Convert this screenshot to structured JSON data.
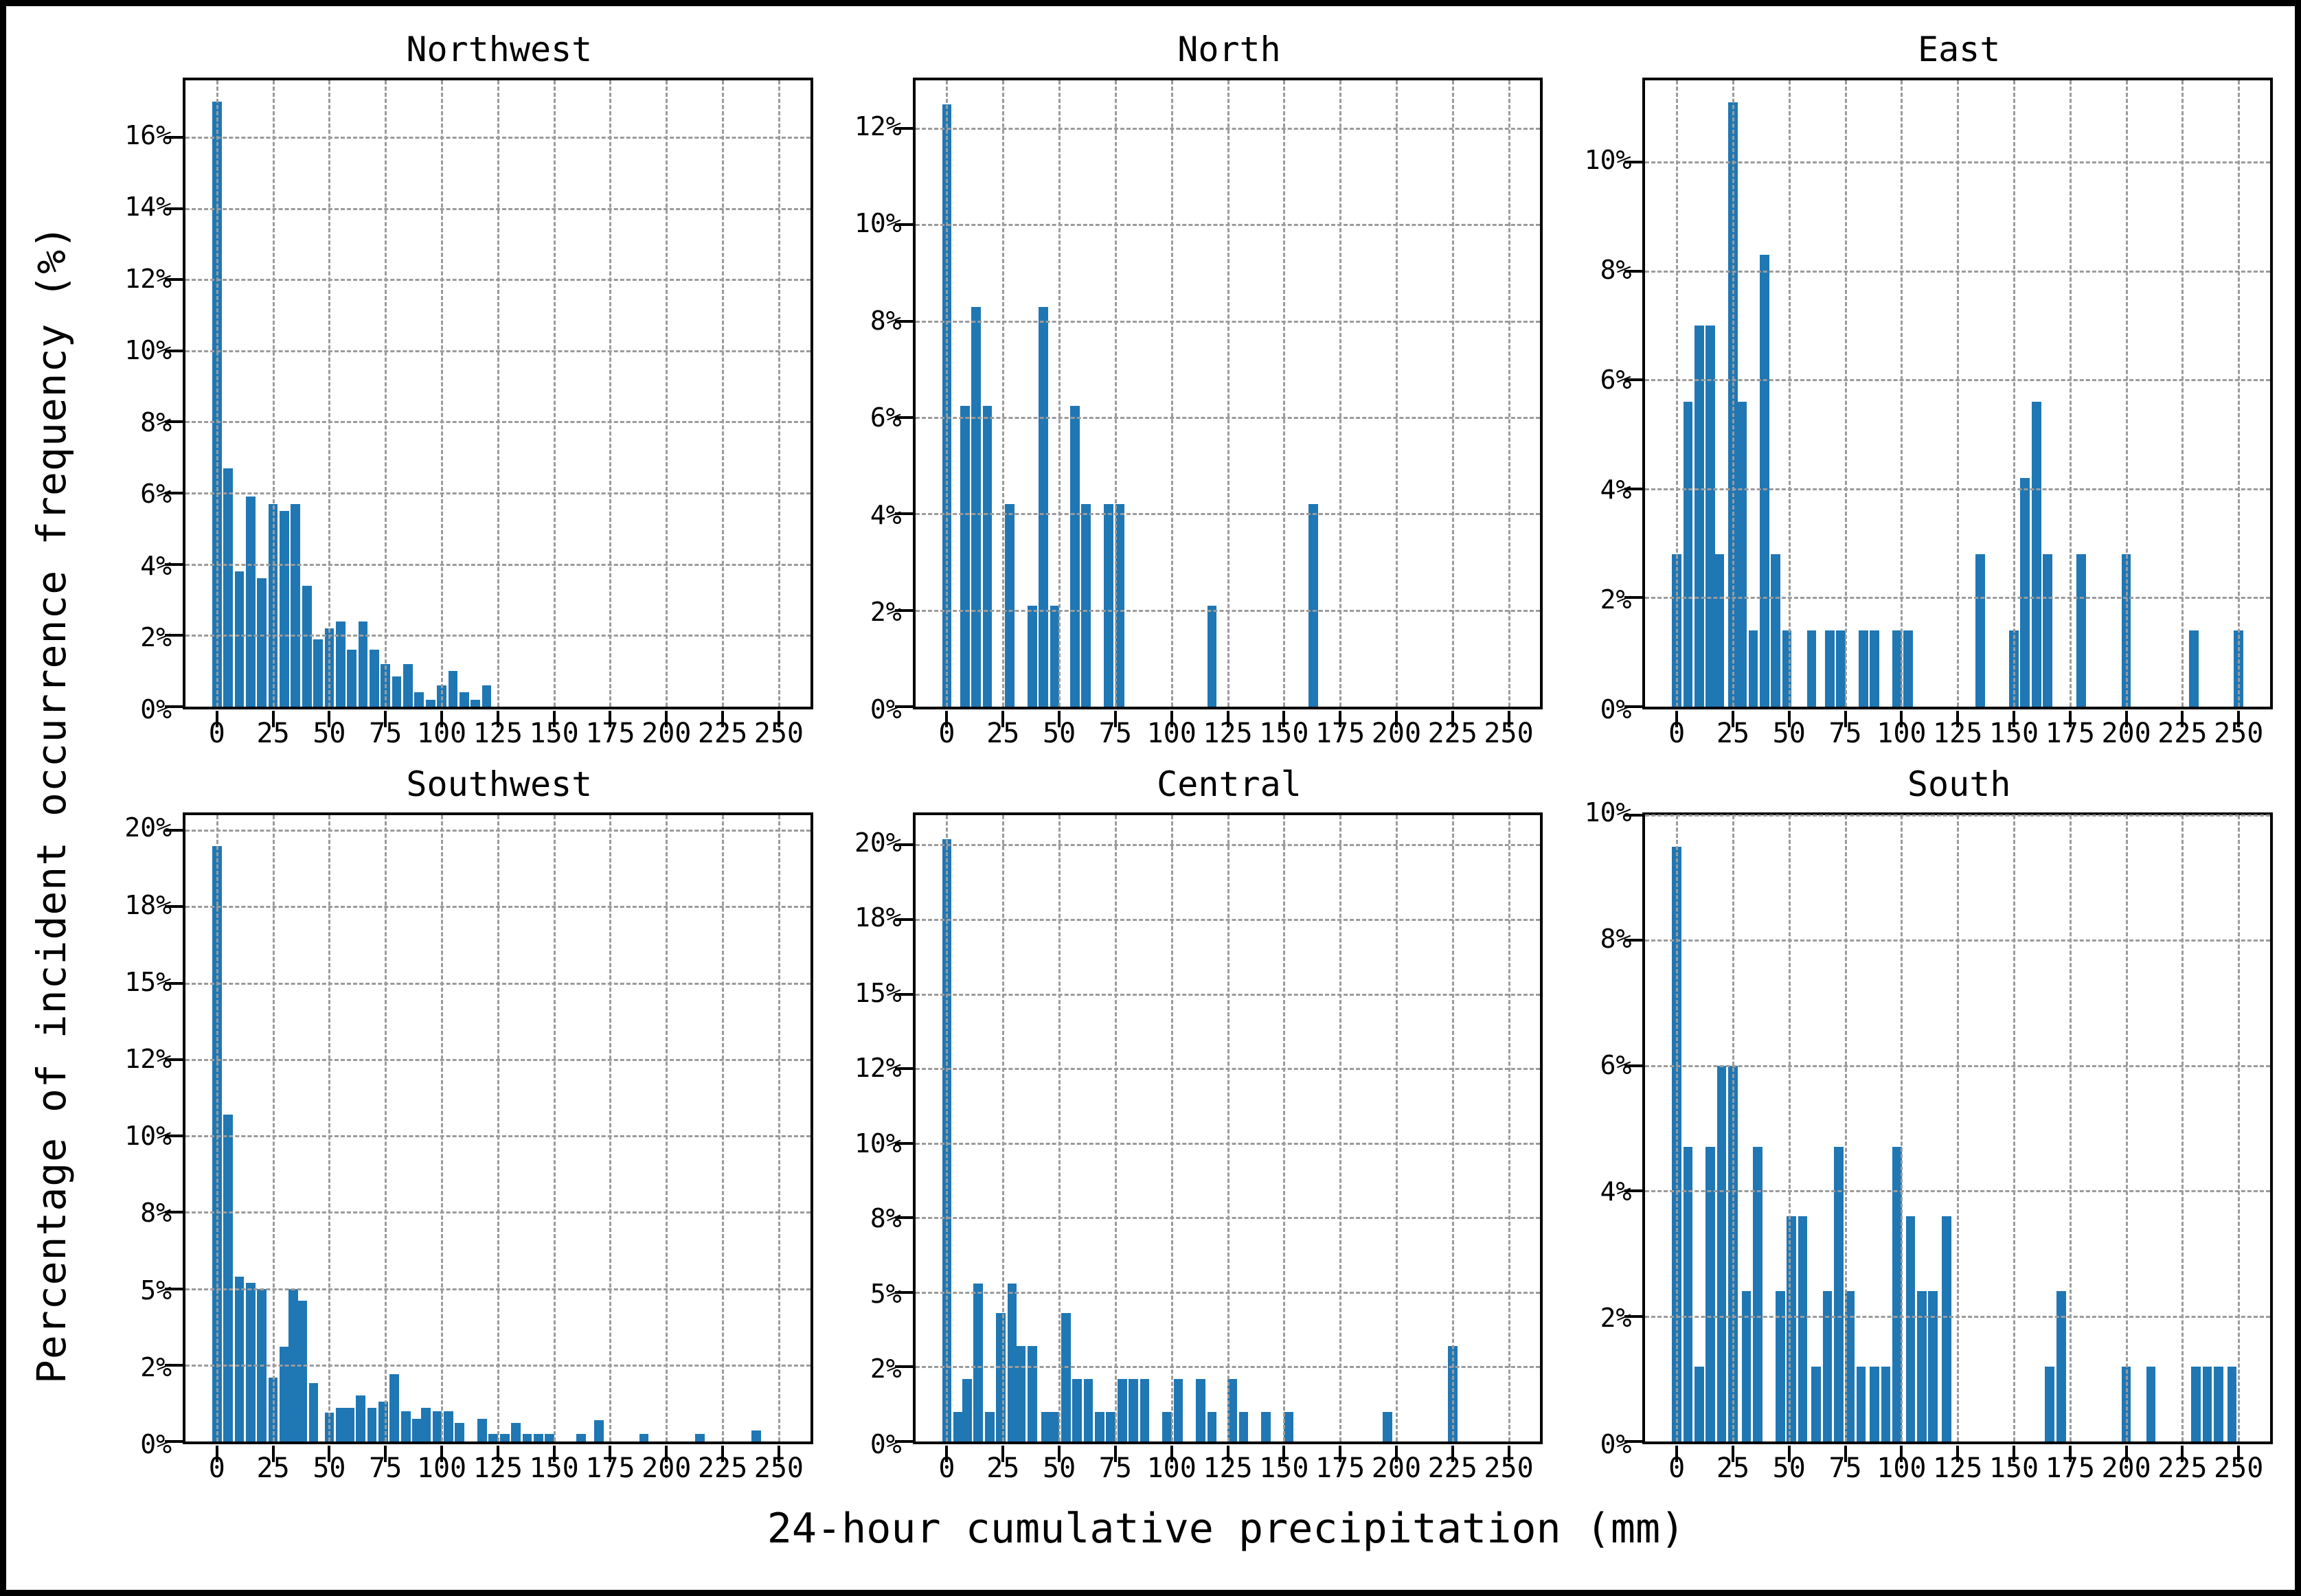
{
  "figure": {
    "background": "#ffffff",
    "border_color": "#000000"
  },
  "chart_data": {
    "type": "bar",
    "subtype": "histogram_small_multiples",
    "layout": {
      "rows": 2,
      "cols": 3,
      "grid": "dashed",
      "legend": "none"
    },
    "shared_ylabel": "Percentage of incident occurrence frequency (%)",
    "shared_xlabel": "24-hour cumulative precipitation (mm)",
    "bar_color": "#1f77b4",
    "gridline_color": "#9b9b9b",
    "xlim": [
      -14,
      264
    ],
    "x_ticks": [
      0,
      25,
      50,
      75,
      100,
      125,
      150,
      175,
      200,
      225,
      250
    ],
    "bin_width_mm": 4.2,
    "bars_format": "[x_mm, percent]",
    "panels": [
      {
        "title": "Northwest",
        "ylim": [
          0,
          17.6
        ],
        "y_ticks": [
          {
            "value": 0,
            "label": "0%"
          },
          {
            "value": 2,
            "label": "2%"
          },
          {
            "value": 4,
            "label": "4%"
          },
          {
            "value": 6,
            "label": "6%"
          },
          {
            "value": 8,
            "label": "8%"
          },
          {
            "value": 10,
            "label": "10%"
          },
          {
            "value": 12,
            "label": "12%"
          },
          {
            "value": 14,
            "label": "14%"
          },
          {
            "value": 16,
            "label": "16%"
          }
        ],
        "bars": [
          [
            0,
            17.0
          ],
          [
            5,
            6.7
          ],
          [
            10,
            3.8
          ],
          [
            15,
            5.9
          ],
          [
            20,
            3.6
          ],
          [
            25,
            5.7
          ],
          [
            30,
            5.5
          ],
          [
            35,
            5.7
          ],
          [
            40,
            3.4
          ],
          [
            45,
            1.9
          ],
          [
            50,
            2.2
          ],
          [
            55,
            2.4
          ],
          [
            60,
            1.6
          ],
          [
            65,
            2.4
          ],
          [
            70,
            1.6
          ],
          [
            75,
            1.2
          ],
          [
            80,
            0.85
          ],
          [
            85,
            1.2
          ],
          [
            90,
            0.4
          ],
          [
            95,
            0.2
          ],
          [
            100,
            0.6
          ],
          [
            105,
            1.0
          ],
          [
            110,
            0.4
          ],
          [
            115,
            0.2
          ],
          [
            120,
            0.6
          ]
        ]
      },
      {
        "title": "North",
        "ylim": [
          0,
          13.0
        ],
        "y_ticks": [
          {
            "value": 0,
            "label": "0%"
          },
          {
            "value": 2,
            "label": "2%"
          },
          {
            "value": 4,
            "label": "4%"
          },
          {
            "value": 6,
            "label": "6%"
          },
          {
            "value": 8,
            "label": "8%"
          },
          {
            "value": 10,
            "label": "10%"
          },
          {
            "value": 12,
            "label": "12%"
          }
        ],
        "bars": [
          [
            0,
            12.5
          ],
          [
            8,
            6.25
          ],
          [
            13,
            8.3
          ],
          [
            18,
            6.25
          ],
          [
            28,
            4.2
          ],
          [
            38,
            2.1
          ],
          [
            43,
            8.3
          ],
          [
            48,
            2.1
          ],
          [
            57,
            6.25
          ],
          [
            62,
            4.2
          ],
          [
            72,
            4.2
          ],
          [
            77,
            4.2
          ],
          [
            118,
            2.1
          ],
          [
            163,
            4.2
          ]
        ]
      },
      {
        "title": "East",
        "ylim": [
          0,
          11.5
        ],
        "y_ticks": [
          {
            "value": 0,
            "label": "0%"
          },
          {
            "value": 2,
            "label": "2%"
          },
          {
            "value": 4,
            "label": "4%"
          },
          {
            "value": 6,
            "label": "6%"
          },
          {
            "value": 8,
            "label": "8%"
          },
          {
            "value": 10,
            "label": "10%"
          }
        ],
        "bars": [
          [
            0,
            2.8
          ],
          [
            5,
            5.6
          ],
          [
            10,
            7.0
          ],
          [
            15,
            7.0
          ],
          [
            19,
            2.8
          ],
          [
            25,
            11.1
          ],
          [
            29,
            5.6
          ],
          [
            34,
            1.4
          ],
          [
            39,
            8.3
          ],
          [
            44,
            2.8
          ],
          [
            49,
            1.4
          ],
          [
            60,
            1.4
          ],
          [
            68,
            1.4
          ],
          [
            73,
            1.4
          ],
          [
            83,
            1.4
          ],
          [
            88,
            1.4
          ],
          [
            98,
            1.4
          ],
          [
            103,
            1.4
          ],
          [
            135,
            2.8
          ],
          [
            150,
            1.4
          ],
          [
            155,
            4.2
          ],
          [
            160,
            5.6
          ],
          [
            165,
            2.8
          ],
          [
            180,
            2.8
          ],
          [
            200,
            2.8
          ],
          [
            230,
            1.4
          ],
          [
            250,
            1.4
          ]
        ]
      },
      {
        "title": "Southwest",
        "ylim": [
          0,
          20.5
        ],
        "y_ticks": [
          {
            "value": 0,
            "label": "0%"
          },
          {
            "value": 2.5,
            "label": "2%"
          },
          {
            "value": 5,
            "label": "5%"
          },
          {
            "value": 7.5,
            "label": "8%"
          },
          {
            "value": 10,
            "label": "10%"
          },
          {
            "value": 12.5,
            "label": "12%"
          },
          {
            "value": 15,
            "label": "15%"
          },
          {
            "value": 17.5,
            "label": "18%"
          },
          {
            "value": 20,
            "label": "20%"
          }
        ],
        "bars": [
          [
            0,
            19.5
          ],
          [
            5,
            10.7
          ],
          [
            10,
            5.4
          ],
          [
            15,
            5.2
          ],
          [
            20,
            5.0
          ],
          [
            25,
            2.1
          ],
          [
            30,
            3.1
          ],
          [
            34,
            5.0
          ],
          [
            38,
            4.6
          ],
          [
            43,
            1.9
          ],
          [
            50,
            0.95
          ],
          [
            55,
            1.1
          ],
          [
            59,
            1.1
          ],
          [
            64,
            1.5
          ],
          [
            69,
            1.1
          ],
          [
            74,
            1.3
          ],
          [
            79,
            2.2
          ],
          [
            84,
            1.0
          ],
          [
            89,
            0.75
          ],
          [
            93,
            1.1
          ],
          [
            98,
            1.0
          ],
          [
            103,
            1.0
          ],
          [
            108,
            0.6
          ],
          [
            118,
            0.75
          ],
          [
            123,
            0.25
          ],
          [
            128,
            0.25
          ],
          [
            133,
            0.6
          ],
          [
            138,
            0.25
          ],
          [
            143,
            0.25
          ],
          [
            148,
            0.25
          ],
          [
            162,
            0.25
          ],
          [
            170,
            0.7
          ],
          [
            190,
            0.25
          ],
          [
            215,
            0.25
          ],
          [
            240,
            0.35
          ]
        ]
      },
      {
        "title": "Central",
        "ylim": [
          0,
          21.0
        ],
        "y_ticks": [
          {
            "value": 0,
            "label": "0%"
          },
          {
            "value": 2.5,
            "label": "2%"
          },
          {
            "value": 5,
            "label": "5%"
          },
          {
            "value": 7.5,
            "label": "8%"
          },
          {
            "value": 10,
            "label": "10%"
          },
          {
            "value": 12.5,
            "label": "12%"
          },
          {
            "value": 15,
            "label": "15%"
          },
          {
            "value": 17.5,
            "label": "18%"
          },
          {
            "value": 20,
            "label": "20%"
          }
        ],
        "bars": [
          [
            0,
            20.2
          ],
          [
            5,
            1.0
          ],
          [
            9,
            2.1
          ],
          [
            14,
            5.3
          ],
          [
            19,
            1.0
          ],
          [
            24,
            4.3
          ],
          [
            29,
            5.3
          ],
          [
            33,
            3.2
          ],
          [
            38,
            3.2
          ],
          [
            44,
            1.0
          ],
          [
            48,
            1.0
          ],
          [
            53,
            4.3
          ],
          [
            58,
            2.1
          ],
          [
            63,
            2.1
          ],
          [
            68,
            1.0
          ],
          [
            73,
            1.0
          ],
          [
            78,
            2.1
          ],
          [
            83,
            2.1
          ],
          [
            88,
            2.1
          ],
          [
            98,
            1.0
          ],
          [
            103,
            2.1
          ],
          [
            113,
            2.1
          ],
          [
            118,
            1.0
          ],
          [
            127,
            2.1
          ],
          [
            132,
            1.0
          ],
          [
            142,
            1.0
          ],
          [
            152,
            1.0
          ],
          [
            196,
            1.0
          ],
          [
            225,
            3.2
          ]
        ]
      },
      {
        "title": "South",
        "ylim": [
          0,
          10.0
        ],
        "y_ticks": [
          {
            "value": 0,
            "label": "0%"
          },
          {
            "value": 2,
            "label": "2%"
          },
          {
            "value": 4,
            "label": "4%"
          },
          {
            "value": 6,
            "label": "6%"
          },
          {
            "value": 8,
            "label": "8%"
          },
          {
            "value": 10,
            "label": "10%"
          }
        ],
        "bars": [
          [
            0,
            9.5
          ],
          [
            5,
            4.7
          ],
          [
            10,
            1.2
          ],
          [
            15,
            4.7
          ],
          [
            20,
            6.0
          ],
          [
            25,
            6.0
          ],
          [
            31,
            2.4
          ],
          [
            36,
            4.7
          ],
          [
            46,
            2.4
          ],
          [
            51,
            3.6
          ],
          [
            56,
            3.6
          ],
          [
            62,
            1.2
          ],
          [
            67,
            2.4
          ],
          [
            72,
            4.7
          ],
          [
            77,
            2.4
          ],
          [
            82,
            1.2
          ],
          [
            88,
            1.2
          ],
          [
            93,
            1.2
          ],
          [
            98,
            4.7
          ],
          [
            104,
            3.6
          ],
          [
            109,
            2.4
          ],
          [
            114,
            2.4
          ],
          [
            120,
            3.6
          ],
          [
            166,
            1.2
          ],
          [
            171,
            2.4
          ],
          [
            200,
            1.2
          ],
          [
            211,
            1.2
          ],
          [
            231,
            1.2
          ],
          [
            236,
            1.2
          ],
          [
            241,
            1.2
          ],
          [
            247,
            1.2
          ]
        ]
      }
    ]
  }
}
